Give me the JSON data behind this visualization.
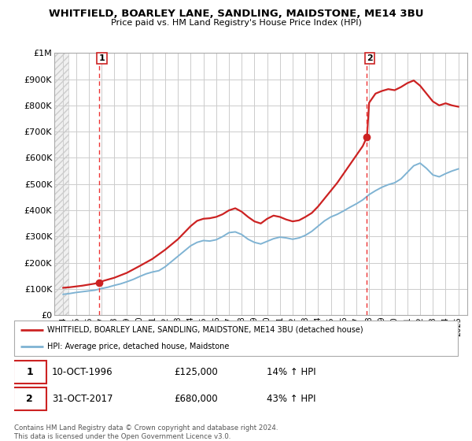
{
  "title": "WHITFIELD, BOARLEY LANE, SANDLING, MAIDSTONE, ME14 3BU",
  "subtitle": "Price paid vs. HM Land Registry's House Price Index (HPI)",
  "hpi_color": "#7fb3d3",
  "price_color": "#cc2222",
  "dashed_color": "#ee3333",
  "ylim": [
    0,
    1000000
  ],
  "yticks": [
    0,
    100000,
    200000,
    300000,
    400000,
    500000,
    600000,
    700000,
    800000,
    900000,
    1000000
  ],
  "ytick_labels": [
    "£0",
    "£100K",
    "£200K",
    "£300K",
    "£400K",
    "£500K",
    "£600K",
    "£700K",
    "£800K",
    "£900K",
    "£1M"
  ],
  "xlim_start": 1993.3,
  "xlim_end": 2025.7,
  "hatch_end": 1994.4,
  "sale1_year": 1996.79,
  "sale1_price": 125000,
  "sale2_year": 2017.83,
  "sale2_price": 680000,
  "legend_line1": "WHITFIELD, BOARLEY LANE, SANDLING, MAIDSTONE, ME14 3BU (detached house)",
  "legend_line2": "HPI: Average price, detached house, Maidstone",
  "note1_label": "1",
  "note1_date": "10-OCT-1996",
  "note1_price": "£125,000",
  "note1_hpi": "14% ↑ HPI",
  "note2_label": "2",
  "note2_date": "31-OCT-2017",
  "note2_price": "£680,000",
  "note2_hpi": "43% ↑ HPI",
  "footer": "Contains HM Land Registry data © Crown copyright and database right 2024.\nThis data is licensed under the Open Government Licence v3.0.",
  "hpi_data_x": [
    1994.0,
    1994.5,
    1995.0,
    1995.5,
    1996.0,
    1996.5,
    1997.0,
    1997.5,
    1998.0,
    1998.5,
    1999.0,
    1999.5,
    2000.0,
    2000.5,
    2001.0,
    2001.5,
    2002.0,
    2002.5,
    2003.0,
    2003.5,
    2004.0,
    2004.5,
    2005.0,
    2005.5,
    2006.0,
    2006.5,
    2007.0,
    2007.5,
    2008.0,
    2008.5,
    2009.0,
    2009.5,
    2010.0,
    2010.5,
    2011.0,
    2011.5,
    2012.0,
    2012.5,
    2013.0,
    2013.5,
    2014.0,
    2014.5,
    2015.0,
    2015.5,
    2016.0,
    2016.5,
    2017.0,
    2017.5,
    2018.0,
    2018.5,
    2019.0,
    2019.5,
    2020.0,
    2020.5,
    2021.0,
    2021.5,
    2022.0,
    2022.5,
    2023.0,
    2023.5,
    2024.0,
    2024.5,
    2025.0
  ],
  "hpi_data_y": [
    80000,
    83000,
    87000,
    90000,
    93000,
    96000,
    102000,
    107000,
    114000,
    120000,
    128000,
    137000,
    148000,
    158000,
    165000,
    170000,
    185000,
    205000,
    225000,
    245000,
    265000,
    278000,
    285000,
    283000,
    288000,
    300000,
    315000,
    318000,
    308000,
    290000,
    278000,
    272000,
    282000,
    292000,
    298000,
    295000,
    290000,
    295000,
    305000,
    320000,
    340000,
    360000,
    375000,
    385000,
    398000,
    412000,
    425000,
    440000,
    460000,
    475000,
    488000,
    498000,
    505000,
    520000,
    545000,
    570000,
    580000,
    560000,
    535000,
    528000,
    540000,
    550000,
    558000
  ],
  "price_data_x": [
    1994.0,
    1994.5,
    1995.0,
    1995.5,
    1996.0,
    1996.5,
    1996.79,
    1997.2,
    1998.0,
    1999.0,
    2000.0,
    2001.0,
    2002.0,
    2003.0,
    2003.5,
    2004.0,
    2004.5,
    2005.0,
    2005.5,
    2006.0,
    2006.5,
    2007.0,
    2007.5,
    2008.0,
    2008.5,
    2009.0,
    2009.5,
    2010.0,
    2010.5,
    2011.0,
    2011.5,
    2012.0,
    2012.5,
    2013.0,
    2013.5,
    2014.0,
    2014.5,
    2015.0,
    2015.5,
    2016.0,
    2016.5,
    2017.0,
    2017.5,
    2017.83,
    2018.0,
    2018.5,
    2019.0,
    2019.5,
    2020.0,
    2020.5,
    2021.0,
    2021.5,
    2022.0,
    2022.5,
    2023.0,
    2023.5,
    2024.0,
    2024.5,
    2025.0
  ],
  "price_data_y": [
    105000,
    107000,
    110000,
    113000,
    117000,
    121000,
    125000,
    132000,
    143000,
    162000,
    188000,
    215000,
    250000,
    290000,
    315000,
    340000,
    360000,
    368000,
    370000,
    375000,
    385000,
    400000,
    408000,
    395000,
    375000,
    358000,
    350000,
    368000,
    380000,
    375000,
    365000,
    358000,
    362000,
    375000,
    390000,
    415000,
    445000,
    475000,
    505000,
    540000,
    575000,
    610000,
    645000,
    680000,
    810000,
    845000,
    855000,
    862000,
    858000,
    870000,
    885000,
    895000,
    875000,
    845000,
    815000,
    800000,
    808000,
    800000,
    795000
  ]
}
